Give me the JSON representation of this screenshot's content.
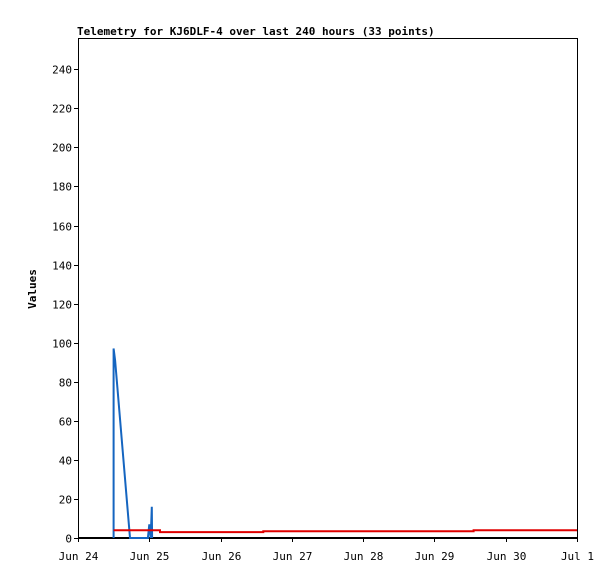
{
  "chart_data": {
    "type": "line",
    "title": "Telemetry for KJ6DLF-4 over last 240 hours (33 points)",
    "ylabel": "Values",
    "xlabel": "",
    "x_tick_labels": [
      "Jun 24",
      "Jun 25",
      "Jun 26",
      "Jun 27",
      "Jun 28",
      "Jun 29",
      "Jun 30",
      "Jul 1"
    ],
    "y_ticks": [
      0,
      20,
      40,
      60,
      80,
      100,
      120,
      140,
      160,
      180,
      200,
      220,
      240
    ],
    "x_range_days": [
      0,
      7
    ],
    "ylim": [
      0,
      256
    ],
    "grid": false,
    "legend": "none",
    "series": [
      {
        "color": "#1565c0",
        "x": [
          0.5,
          0.5,
          0.52,
          0.73,
          0.74,
          0.98,
          1.0,
          1.02,
          1.035,
          1.04
        ],
        "y": [
          0,
          97,
          91,
          0,
          0,
          0,
          7,
          0,
          16,
          0
        ]
      },
      {
        "color": "#e00000",
        "x": [
          0.5,
          1.0,
          1.0,
          1.15,
          1.15,
          2.6,
          2.6,
          5.55,
          5.55,
          7.0
        ],
        "y": [
          4,
          4,
          4,
          4,
          3,
          3,
          3.5,
          3.5,
          4,
          4
        ]
      }
    ],
    "baseline": {
      "y": 0,
      "color": "#000000"
    }
  }
}
